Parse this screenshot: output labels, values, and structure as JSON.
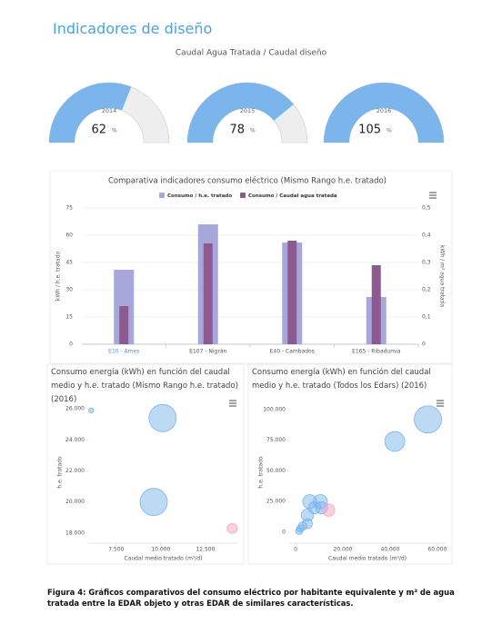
{
  "heading": "Indicadores de diseño",
  "chart_data": [
    {
      "type": "gauge",
      "title": "Caudal Agua Tratada / Caudal diseño",
      "categories": [
        "2014",
        "2015",
        "2016"
      ],
      "values": [
        62,
        78,
        105
      ],
      "unit": "%",
      "ylim": [
        0,
        100
      ],
      "color": "#7cb5ec",
      "track_color": "#eeeeee"
    },
    {
      "type": "bar",
      "title": "Comparativa indicadores consumo eléctrico (Mismo Rango h.e. tratado)",
      "categories": [
        "E10 - Ames",
        "E107 - Nigrán",
        "E40 - Cambados",
        "E165 - Ribadumia"
      ],
      "series": [
        {
          "name": "Consumo / h.e. tratado",
          "color": "#a6a8db",
          "values": [
            41,
            66,
            56,
            26
          ]
        },
        {
          "name": "Consumo / Caudal agua tratada",
          "color": "#8c5a8e",
          "axis": "y2",
          "values": [
            0.14,
            0.37,
            0.38,
            0.29
          ]
        }
      ],
      "ylabel": "kWh / h.e. tratado",
      "y2label": "kWh / m³ agua tratada",
      "ylim": [
        0,
        75
      ],
      "yticks": [
        0,
        15,
        30,
        45,
        60,
        75
      ],
      "y2lim": [
        0,
        0.5
      ],
      "y2ticks": [
        0,
        {
          "value": 0.1,
          "label": "0,1"
        },
        {
          "value": 0.2,
          "label": "0,2"
        },
        {
          "value": 0.3,
          "label": "0,3"
        },
        {
          "value": 0.4,
          "label": "0,4"
        },
        {
          "value": 0.5,
          "label": "0,5"
        }
      ],
      "grid": true,
      "legend": "top"
    },
    {
      "type": "bubble",
      "title": "Consumo energía (kWh) en función del caudal medio y h.e. tratado (Mismo Rango h.e. tratado) (2016)",
      "xlabel": "Caudal medio tratado (m³/d)",
      "ylabel": "h.e. tratado",
      "x": [
        6100,
        10100,
        9600,
        14000
      ],
      "values": [
        25900,
        25400,
        20000,
        18300
      ],
      "sizes": [
        1,
        30,
        30,
        4
      ],
      "colors": [
        "#7cb5ec",
        "#7cb5ec",
        "#7cb5ec",
        "#f7a3c0"
      ],
      "xlim": [
        5930,
        14340
      ],
      "xticks": [
        {
          "value": 7500,
          "label": "7.500"
        },
        {
          "value": 10000,
          "label": "10.000"
        },
        {
          "value": 12500,
          "label": "12.500"
        }
      ],
      "ylim": [
        17350,
        26470
      ],
      "yticks": [
        {
          "value": 18000,
          "label": "18.000"
        },
        {
          "value": 20000,
          "label": "20.000"
        },
        {
          "value": 22000,
          "label": "22.000"
        },
        {
          "value": 24000,
          "label": "24.000"
        },
        {
          "value": 26000,
          "label": "26.000"
        }
      ]
    },
    {
      "type": "bubble",
      "title": "Consumo energía (kWh) en función del caudal medio y h.e. tratado (Todos los Edars) (2016)",
      "xlabel": "Caudal medio tratado (m³/d)",
      "ylabel": "h.e. tratado",
      "x": [
        56000,
        42000,
        6000,
        10500,
        8000,
        5000,
        11000,
        5000,
        3000,
        2000,
        1500,
        14000
      ],
      "values": [
        92000,
        74000,
        25000,
        25000,
        20000,
        14000,
        20000,
        7000,
        5000,
        3000,
        1000,
        18000
      ],
      "sizes": [
        30,
        16,
        8,
        8,
        6,
        6,
        6,
        4,
        3,
        2,
        2,
        6
      ],
      "colors": [
        "#7cb5ec",
        "#7cb5ec",
        "#7cb5ec",
        "#7cb5ec",
        "#7cb5ec",
        "#7cb5ec",
        "#7cb5ec",
        "#7cb5ec",
        "#7cb5ec",
        "#7cb5ec",
        "#7cb5ec",
        "#f7a3c0"
      ],
      "xlim": [
        -2700,
        63500
      ],
      "xticks": [
        0,
        {
          "value": 20000,
          "label": "20.000"
        },
        {
          "value": 40000,
          "label": "40.000"
        },
        {
          "value": 60000,
          "label": "60.000"
        }
      ],
      "ylim": [
        -8900,
        106600
      ],
      "yticks": [
        0,
        {
          "value": 25000,
          "label": "25.000"
        },
        {
          "value": 50000,
          "label": "50.000"
        },
        {
          "value": 75000,
          "label": "75.000"
        },
        {
          "value": 100000,
          "label": "100.000"
        }
      ]
    }
  ],
  "caption": "Figura 4: Gráficos comparativos del consumo eléctrico por habitante equivalente y m³ de agua tratada entre la EDAR objeto y otras EDAR de similares características."
}
